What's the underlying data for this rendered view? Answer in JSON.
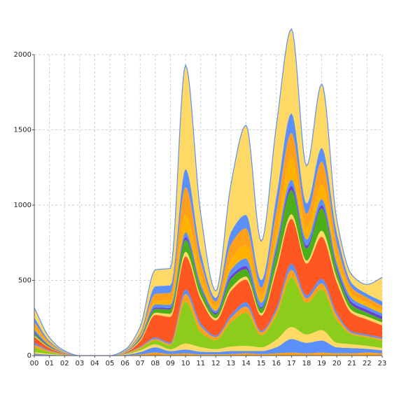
{
  "chart_data": {
    "type": "area",
    "stacked": true,
    "smooth": true,
    "title": "",
    "xlabel": "",
    "ylabel": "",
    "ylim": [
      0,
      2000
    ],
    "yticks": [
      0,
      500,
      1000,
      1500,
      2000
    ],
    "grid": true,
    "categories": [
      "00",
      "01",
      "02",
      "03",
      "04",
      "05",
      "06",
      "07",
      "08",
      "09",
      "10",
      "11",
      "12",
      "13",
      "14",
      "15",
      "16",
      "17",
      "18",
      "19",
      "20",
      "21",
      "22",
      "23"
    ],
    "series": [
      {
        "color": "#ff9f1a",
        "values": [
          5,
          2,
          1,
          0,
          0,
          0,
          2,
          8,
          20,
          10,
          15,
          8,
          8,
          10,
          15,
          10,
          15,
          20,
          15,
          20,
          15,
          15,
          20,
          15
        ]
      },
      {
        "color": "#5b8ff9",
        "values": [
          8,
          4,
          1,
          0,
          0,
          0,
          3,
          15,
          35,
          20,
          25,
          18,
          15,
          20,
          15,
          20,
          40,
          90,
          70,
          80,
          40,
          35,
          25,
          20
        ]
      },
      {
        "color": "#ffd966",
        "values": [
          10,
          5,
          1,
          0,
          0,
          0,
          3,
          12,
          20,
          12,
          40,
          30,
          20,
          30,
          35,
          25,
          50,
          80,
          55,
          70,
          30,
          25,
          20,
          15
        ]
      },
      {
        "color": "#8ccc1a",
        "values": [
          30,
          12,
          3,
          0,
          0,
          0,
          3,
          12,
          25,
          25,
          280,
          100,
          60,
          160,
          220,
          80,
          160,
          330,
          210,
          270,
          150,
          65,
          55,
          50
        ]
      },
      {
        "color": "#ff9f1a",
        "values": [
          20,
          8,
          2,
          0,
          0,
          0,
          2,
          8,
          10,
          10,
          50,
          40,
          20,
          30,
          40,
          20,
          30,
          50,
          30,
          40,
          30,
          10,
          10,
          10
        ]
      },
      {
        "color": "#5b8ff9",
        "values": [
          12,
          5,
          2,
          0,
          0,
          0,
          2,
          5,
          10,
          10,
          30,
          20,
          10,
          20,
          30,
          10,
          20,
          40,
          20,
          30,
          20,
          10,
          10,
          10
        ]
      },
      {
        "color": "#ff5722",
        "values": [
          40,
          15,
          4,
          0,
          0,
          0,
          5,
          35,
          150,
          170,
          220,
          160,
          100,
          160,
          150,
          100,
          250,
          300,
          210,
          280,
          200,
          120,
          100,
          80
        ]
      },
      {
        "color": "#ffd966",
        "values": [
          8,
          3,
          1,
          0,
          0,
          0,
          2,
          8,
          15,
          20,
          30,
          20,
          15,
          20,
          20,
          15,
          30,
          30,
          20,
          40,
          30,
          20,
          20,
          20
        ]
      },
      {
        "color": "#4caf1a",
        "values": [
          15,
          6,
          2,
          0,
          0,
          0,
          2,
          8,
          25,
          30,
          80,
          50,
          25,
          60,
          50,
          30,
          90,
          160,
          80,
          150,
          50,
          35,
          25,
          20
        ]
      },
      {
        "color": "#6a3fd4",
        "values": [
          10,
          4,
          1,
          0,
          0,
          0,
          1,
          5,
          10,
          10,
          20,
          10,
          10,
          20,
          20,
          10,
          20,
          30,
          20,
          20,
          20,
          20,
          20,
          20
        ]
      },
      {
        "color": "#5b8ff9",
        "values": [
          15,
          6,
          2,
          0,
          0,
          0,
          2,
          8,
          20,
          20,
          30,
          20,
          15,
          40,
          50,
          30,
          40,
          40,
          40,
          40,
          30,
          25,
          20,
          20
        ]
      },
      {
        "color": "#ffb300",
        "values": [
          20,
          8,
          2,
          0,
          0,
          0,
          2,
          8,
          25,
          30,
          120,
          60,
          25,
          70,
          90,
          40,
          80,
          150,
          80,
          100,
          60,
          30,
          25,
          20
        ]
      },
      {
        "color": "#ff9f1a",
        "values": [
          30,
          10,
          3,
          0,
          0,
          0,
          3,
          10,
          45,
          50,
          180,
          90,
          35,
          100,
          110,
          60,
          130,
          160,
          90,
          150,
          70,
          40,
          35,
          30
        ]
      },
      {
        "color": "#5b8ff9",
        "values": [
          30,
          10,
          3,
          0,
          0,
          0,
          3,
          10,
          50,
          50,
          120,
          60,
          25,
          80,
          90,
          50,
          100,
          130,
          70,
          90,
          70,
          30,
          25,
          30
        ]
      },
      {
        "color": "#ffd966",
        "values": [
          65,
          22,
          4,
          0,
          0,
          0,
          5,
          40,
          110,
          113,
          690,
          257,
          47,
          320,
          595,
          260,
          470,
          560,
          250,
          425,
          85,
          55,
          63,
          160
        ]
      }
    ]
  }
}
